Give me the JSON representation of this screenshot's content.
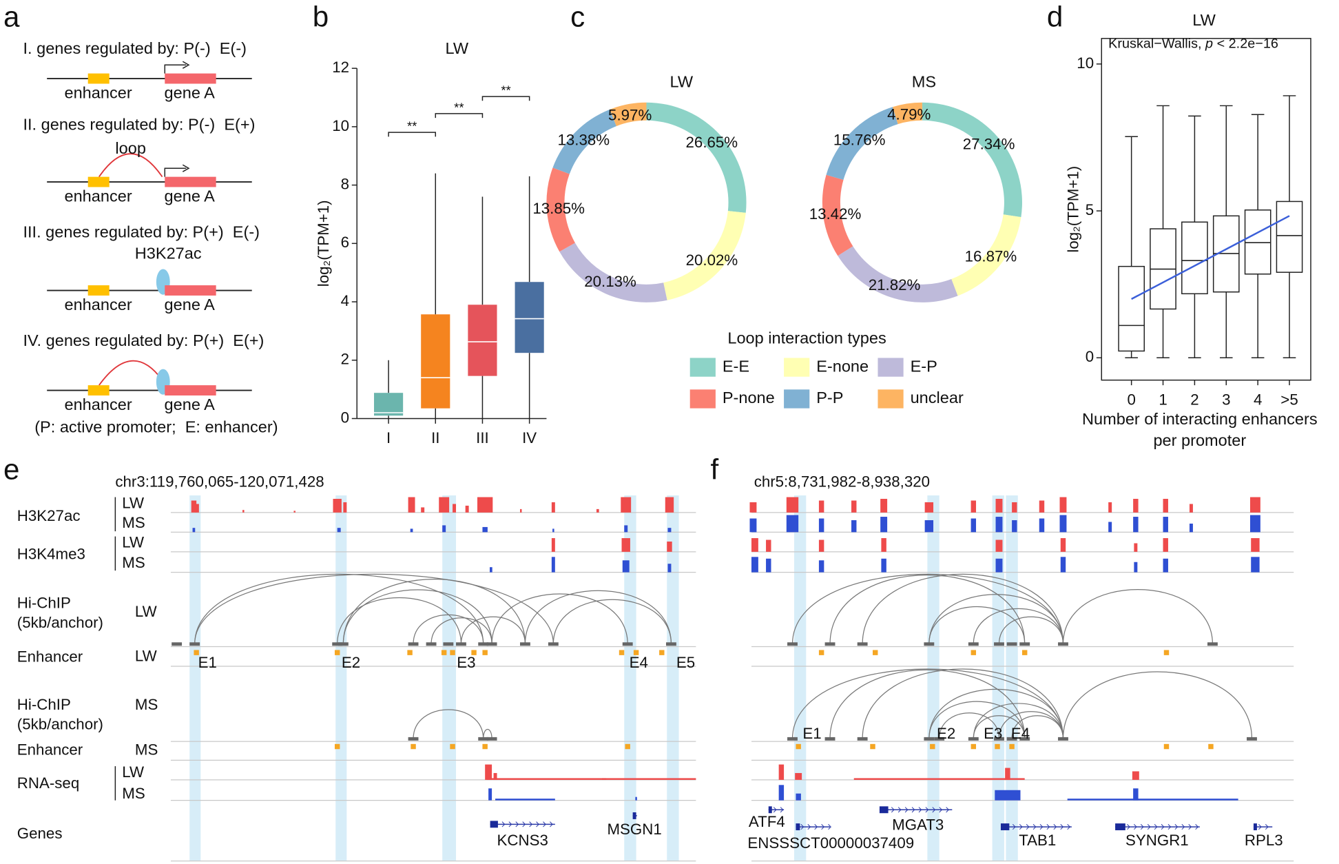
{
  "panel_labels": [
    "a",
    "b",
    "c",
    "d",
    "e",
    "f"
  ],
  "panel_a": {
    "rows": [
      {
        "title": "I. genes regulated by: P(-)  E(-)",
        "enhancer": "enhancer",
        "gene": "gene A"
      },
      {
        "title": "II. genes regulated by: P(-)  E(+)",
        "mark": "loop",
        "enhancer": "enhancer",
        "gene": "gene A"
      },
      {
        "title": "III. genes regulated by: P(+)  E(-)",
        "mark": "H3K27ac",
        "enhancer": "enhancer",
        "gene": "gene A"
      },
      {
        "title": "IV. genes regulated by: P(+)  E(+)",
        "enhancer": "enhancer",
        "gene": "gene A"
      }
    ],
    "note": "(P: active promoter;  E: enhancer)"
  },
  "chart_data": [
    {
      "type": "box",
      "title": "LW",
      "y_label": "log₂(TPM+1)",
      "categories": [
        "I",
        "II",
        "III",
        "IV"
      ],
      "colors": [
        "#6bb5ad",
        "#f5841f",
        "#e5545b",
        "#4a6fa0"
      ],
      "boxes": [
        {
          "whisker_low": 0,
          "q1": 0.1,
          "median": 0.2,
          "q3": 0.88,
          "whisker_high": 2.0
        },
        {
          "whisker_low": 0,
          "q1": 0.35,
          "median": 1.4,
          "q3": 3.57,
          "whisker_high": 8.4
        },
        {
          "whisker_low": 0,
          "q1": 1.46,
          "median": 2.63,
          "q3": 3.9,
          "whisker_high": 7.6
        },
        {
          "whisker_low": 0,
          "q1": 2.25,
          "median": 3.42,
          "q3": 4.68,
          "whisker_high": 8.3
        }
      ],
      "significance": [
        "**",
        "**",
        "**"
      ],
      "ylim": [
        0,
        12
      ],
      "yticks": [
        0,
        2,
        4,
        6,
        8,
        10,
        12
      ]
    },
    {
      "type": "donut",
      "title": "LW",
      "legend_title": "Loop interaction types",
      "categories": [
        "E-E",
        "E-none",
        "E-P",
        "P-none",
        "P-P",
        "unclear"
      ],
      "values": [
        26.65,
        20.02,
        20.13,
        13.85,
        13.38,
        5.97
      ],
      "value_labels": [
        "26.65%",
        "20.02%",
        "20.13%",
        "13.85%",
        "13.38%",
        "5.97%"
      ],
      "colors": [
        "#8dd3c7",
        "#ffffb3",
        "#bebada",
        "#fb8072",
        "#80b1d3",
        "#fdb462"
      ]
    },
    {
      "type": "donut",
      "title": "MS",
      "categories": [
        "E-E",
        "E-none",
        "E-P",
        "P-none",
        "P-P",
        "unclear"
      ],
      "values": [
        27.34,
        16.87,
        21.82,
        13.42,
        15.76,
        4.79
      ],
      "value_labels": [
        "27.34%",
        "16.87%",
        "21.82%",
        "13.42%",
        "15.76%",
        "4.79%"
      ],
      "colors": [
        "#8dd3c7",
        "#ffffb3",
        "#bebada",
        "#fb8072",
        "#80b1d3",
        "#fdb462"
      ]
    },
    {
      "type": "box",
      "title": "LW",
      "y_label": "log₂(TPM+1)",
      "annotation": [
        "Kruskal−Wallis, ",
        "p",
        " < 2.2e−16"
      ],
      "x_label": [
        "Number of interacting enhancers",
        "per promoter"
      ],
      "categories": [
        "0",
        "1",
        "2",
        "3",
        "4",
        ">5"
      ],
      "boxes": [
        {
          "whisker_low": 0,
          "q1": 0.23,
          "median": 1.1,
          "q3": 3.11,
          "whisker_high": 7.53
        },
        {
          "whisker_low": 0,
          "q1": 1.66,
          "median": 3.02,
          "q3": 4.39,
          "whisker_high": 8.58
        },
        {
          "whisker_low": 0,
          "q1": 2.18,
          "median": 3.31,
          "q3": 4.62,
          "whisker_high": 8.23
        },
        {
          "whisker_low": 0,
          "q1": 2.24,
          "median": 3.55,
          "q3": 4.83,
          "whisker_high": 8.58
        },
        {
          "whisker_low": 0,
          "q1": 2.85,
          "median": 3.92,
          "q3": 5.03,
          "whisker_high": 8.28
        },
        {
          "whisker_low": 0,
          "q1": 2.91,
          "median": 4.16,
          "q3": 5.32,
          "whisker_high": 8.92
        }
      ],
      "fit": {
        "start": 2.0,
        "end": 4.83,
        "color": "#3b5fd9"
      },
      "ylim": [
        -0.76,
        10.87
      ],
      "yticks": [
        0,
        5,
        10
      ]
    }
  ],
  "sample_colors": {
    "LW": "#ee4b4b",
    "MS": "#2f4fd3"
  },
  "panel_e": {
    "region": "chr3:119,760,065-120,071,428",
    "tracks": [
      {
        "label": [
          "H3K27ac"
        ],
        "samples": [
          "LW",
          "MS"
        ]
      },
      {
        "label": [
          "H3K4me3"
        ],
        "samples": [
          "LW",
          "MS"
        ]
      },
      {
        "label": [
          "Hi-ChIP",
          "(5kb/anchor)"
        ],
        "samples": [
          "LW"
        ]
      },
      {
        "label": [
          "Enhancer"
        ],
        "samples": [
          "LW"
        ]
      },
      {
        "label": [
          "Hi-ChIP",
          "(5kb/anchor)"
        ],
        "samples": [
          "MS"
        ]
      },
      {
        "label": [
          "Enhancer"
        ],
        "samples": [
          "MS"
        ]
      },
      {
        "label": [
          "RNA-seq"
        ],
        "samples": [
          "LW",
          "MS"
        ]
      },
      {
        "label": [
          "Genes"
        ],
        "samples": []
      }
    ],
    "enhancers": [
      "E1",
      "E2",
      "E3",
      "E4",
      "E5"
    ],
    "genes": [
      {
        "name": "KCNS3",
        "color": "#e8202a"
      },
      {
        "name": "MSGN1",
        "color": "#111111"
      }
    ]
  },
  "panel_f": {
    "region": "chr5:8,731,982-8,938,320",
    "enhancers": [
      "E1",
      "E2",
      "E3",
      "E4"
    ],
    "genes": [
      {
        "name": "ATF4",
        "color": "#111111"
      },
      {
        "name": "ENSSSCT00000037409",
        "color": "#111111"
      },
      {
        "name": "MGAT3",
        "color": "#111111"
      },
      {
        "name": "TAB1",
        "color": "#e8202a"
      },
      {
        "name": "SYNGR1",
        "color": "#111111"
      },
      {
        "name": "RPL3",
        "color": "#111111"
      }
    ]
  }
}
